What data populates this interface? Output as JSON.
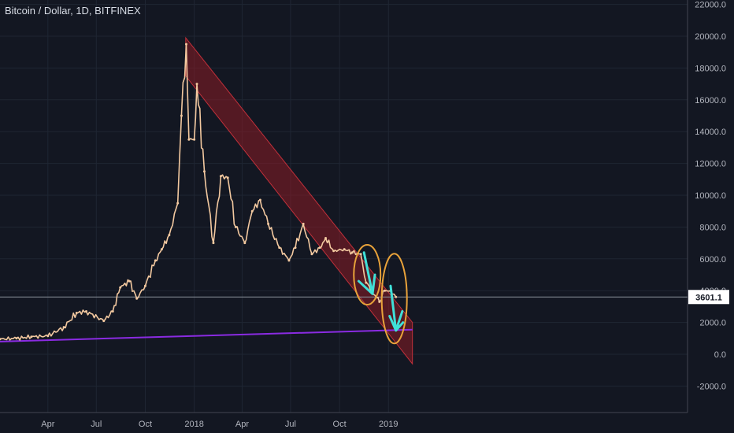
{
  "chart_data": {
    "type": "candlestick",
    "title": "Bitcoin / Dollar, 1D, BITFINEX",
    "last_price_label": "3601.1",
    "ylim": [
      -3000,
      22000
    ],
    "y_ticks": [
      "22000.0",
      "20000.0",
      "18000.0",
      "16000.0",
      "14000.0",
      "12000.0",
      "10000.0",
      "8000.0",
      "6000.0",
      "4000.0",
      "2000.0",
      "0.0",
      "-2000.0"
    ],
    "x_ticks": [
      "Apr",
      "Jul",
      "Oct",
      "2018",
      "Apr",
      "Jul",
      "Oct",
      "2019"
    ],
    "grid": true,
    "colors": {
      "background": "#131722",
      "price": "#f3c9a0",
      "channel": "#8a1c24",
      "support": "#8a2be2",
      "arrows": "#3fe0d8",
      "circles": "#e8a23a"
    },
    "series": [
      {
        "x": [
          "2017-01-01",
          "2017-02-01",
          "2017-03-01",
          "2017-04-01",
          "2017-05-01",
          "2017-05-25",
          "2017-06-12",
          "2017-07-15",
          "2017-08-01",
          "2017-08-15",
          "2017-09-01",
          "2017-09-15",
          "2017-10-01",
          "2017-10-20",
          "2017-11-01",
          "2017-11-15",
          "2017-12-01",
          "2017-12-08",
          "2017-12-17",
          "2017-12-22",
          "2018-01-01",
          "2018-01-06",
          "2018-01-20",
          "2018-02-06",
          "2018-02-20",
          "2018-03-05",
          "2018-03-20",
          "2018-04-06",
          "2018-04-20",
          "2018-05-05",
          "2018-05-20",
          "2018-06-10",
          "2018-06-28",
          "2018-07-10",
          "2018-07-25",
          "2018-08-10",
          "2018-08-25",
          "2018-09-05",
          "2018-09-20",
          "2018-10-10",
          "2018-10-25",
          "2018-11-10",
          "2018-11-20",
          "2018-12-01",
          "2018-12-15",
          "2018-12-25",
          "2019-01-05",
          "2019-01-15"
        ],
        "y": [
          950,
          1000,
          1100,
          1150,
          1700,
          2600,
          2700,
          2100,
          2700,
          4200,
          4600,
          3500,
          4300,
          5900,
          6600,
          7500,
          9500,
          15000,
          19500,
          13500,
          13500,
          17000,
          11500,
          7000,
          11200,
          11100,
          8000,
          7000,
          9000,
          9700,
          8200,
          6700,
          5900,
          6700,
          8200,
          6300,
          6700,
          7300,
          6500,
          6600,
          6400,
          6300,
          4500,
          4000,
          3300,
          4000,
          4000,
          3600
        ]
      }
    ]
  }
}
